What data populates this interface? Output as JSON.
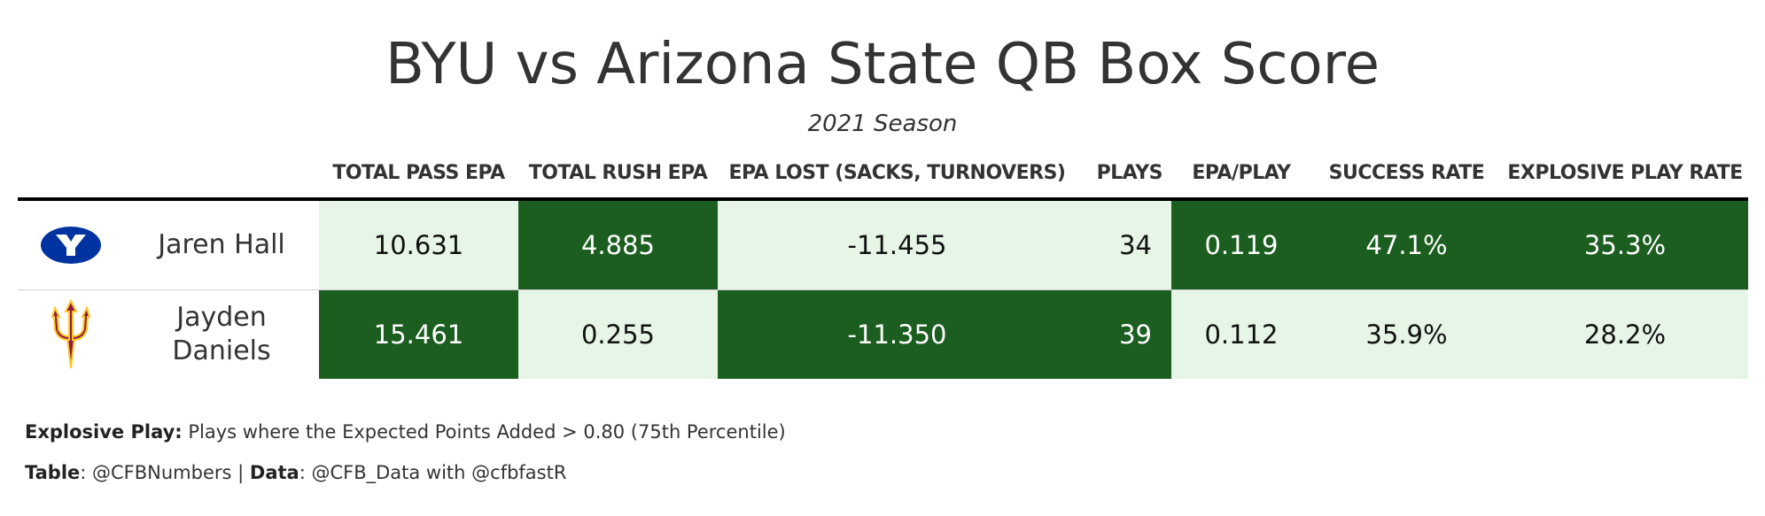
{
  "chart_data": {
    "type": "table",
    "title": "BYU vs Arizona State QB Box Score",
    "subtitle": "2021 Season",
    "columns": [
      "TOTAL PASS EPA",
      "TOTAL RUSH EPA",
      "EPA LOST (SACKS, TURNOVERS)",
      "PLAYS",
      "EPA/PLAY",
      "SUCCESS RATE",
      "EXPLOSIVE PLAY RATE"
    ],
    "rows": [
      {
        "logo": "byu-logo-icon",
        "player": "Jaren Hall",
        "pass_epa": "10.631",
        "rush_epa": "4.885",
        "epa_lost": "-11.455",
        "plays": "34",
        "epa_play": "0.119",
        "success_rate": "47.1%",
        "explosive_rate": "35.3%"
      },
      {
        "logo": "asu-pitchfork-icon",
        "player": "Jayden Daniels",
        "pass_epa": "15.461",
        "rush_epa": "0.255",
        "epa_lost": "-11.350",
        "plays": "39",
        "epa_play": "0.112",
        "success_rate": "35.9%",
        "explosive_rate": "28.2%"
      }
    ],
    "colors": {
      "high": "#1b5e20",
      "low": "#e6f5e6",
      "byu_blue": "#0033a0",
      "asu_maroon": "#8c1d40",
      "asu_gold": "#ffc627"
    }
  },
  "footnote": {
    "label": "Explosive Play:",
    "text": " Plays where the Expected Points Added > 0.80 (75th Percentile)"
  },
  "credits": {
    "table_label": "Table",
    "table_value": ": @CFBNumbers | ",
    "data_label": "Data",
    "data_value": ": @CFB_Data with @cfbfastR"
  }
}
